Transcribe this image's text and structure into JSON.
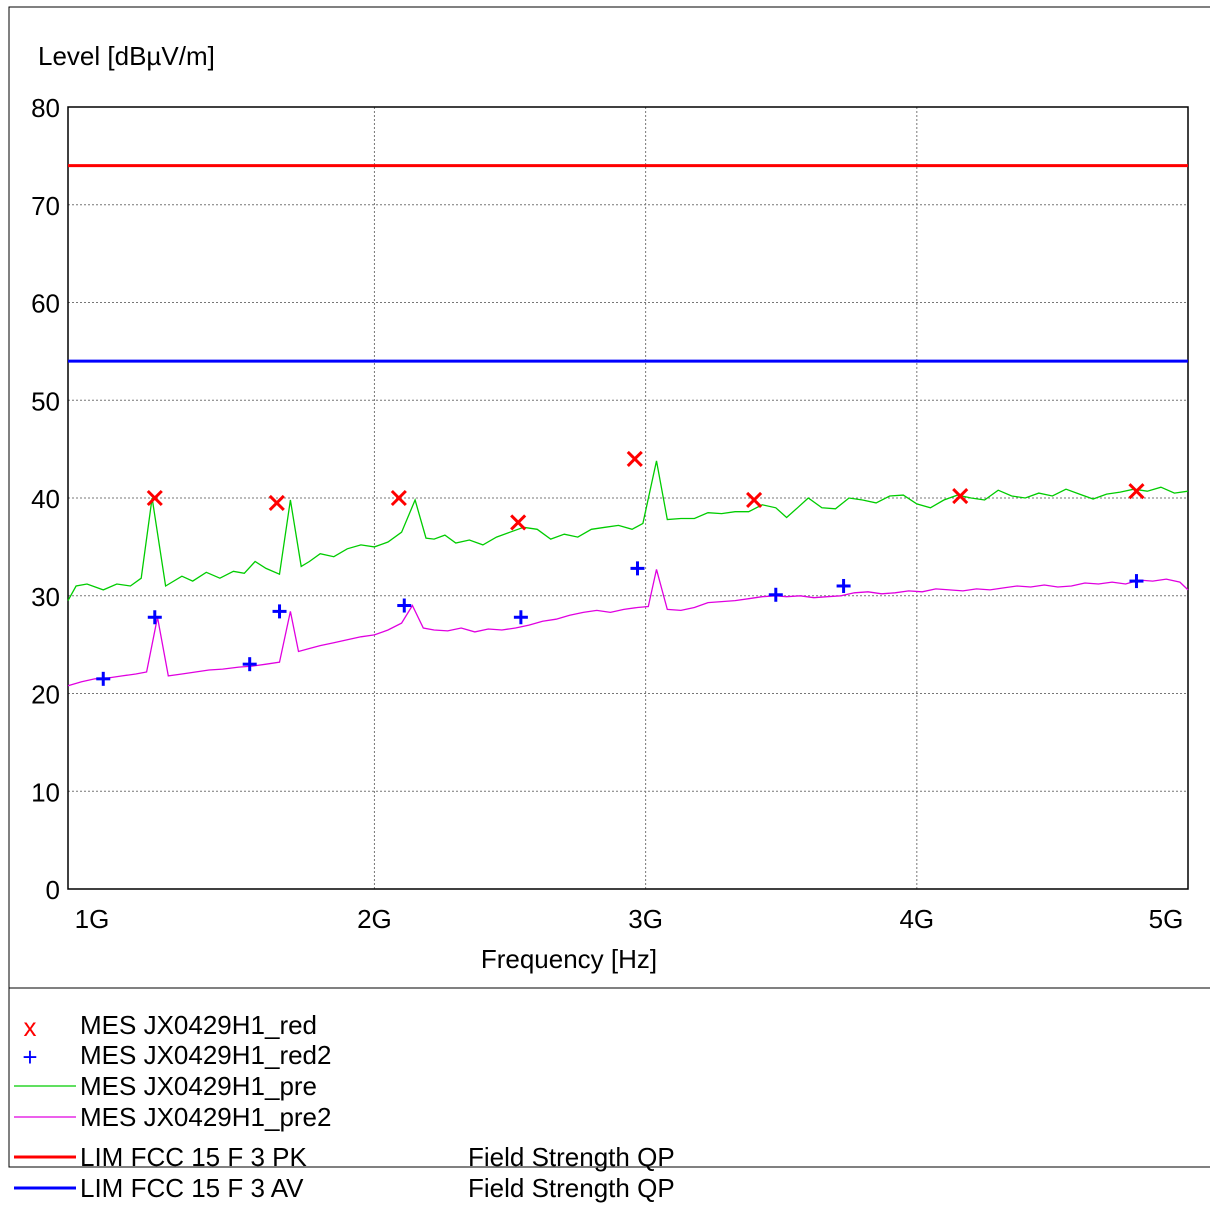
{
  "chart_data": {
    "type": "line",
    "ylabel": "Level [dBµV/m]",
    "xlabel": "Frequency [Hz]",
    "ylim": [
      0,
      80
    ],
    "xlim": [
      1000000000,
      5000000000
    ],
    "yticks": [
      "0",
      "10",
      "20",
      "30",
      "40",
      "50",
      "60",
      "70",
      "80"
    ],
    "xticks": [
      {
        "value": 1000000000,
        "label": "1G"
      },
      {
        "value": 2000000000,
        "label": "2G"
      },
      {
        "value": 3000000000,
        "label": "3G"
      },
      {
        "value": 4000000000,
        "label": "4G"
      },
      {
        "value": 5000000000,
        "label": "5G"
      }
    ],
    "grid": true,
    "legend_placement": "bottom",
    "limits": [
      {
        "name": "LIM  FCC 15 F 3 PK",
        "value": 74,
        "color": "#ff0000",
        "desc": "Field Strength QP"
      },
      {
        "name": "LIM  FCC 15 F 3 AV",
        "value": 54,
        "color": "#0000ff",
        "desc": "Field Strength QP"
      }
    ],
    "series": [
      {
        "name": "MES  JX0429H1_pre",
        "color": "#00cc00",
        "kind": "line",
        "x_ghz": [
          0.87,
          0.9,
          0.94,
          1.0,
          1.05,
          1.1,
          1.14,
          1.18,
          1.23,
          1.29,
          1.33,
          1.38,
          1.43,
          1.48,
          1.52,
          1.56,
          1.6,
          1.65,
          1.69,
          1.73,
          1.76,
          1.8,
          1.85,
          1.9,
          1.95,
          2.0,
          2.05,
          2.1,
          2.15,
          2.19,
          2.22,
          2.26,
          2.3,
          2.35,
          2.4,
          2.45,
          2.5,
          2.55,
          2.6,
          2.65,
          2.7,
          2.75,
          2.8,
          2.85,
          2.9,
          2.95,
          2.99,
          3.04,
          3.08,
          3.13,
          3.18,
          3.23,
          3.28,
          3.33,
          3.38,
          3.43,
          3.48,
          3.52,
          3.56,
          3.6,
          3.65,
          3.7,
          3.75,
          3.8,
          3.85,
          3.9,
          3.95,
          4.0,
          4.05,
          4.1,
          4.15,
          4.2,
          4.25,
          4.3,
          4.35,
          4.4,
          4.45,
          4.5,
          4.55,
          4.6,
          4.65,
          4.7,
          4.75,
          4.8,
          4.85,
          4.9,
          4.95,
          5.0
        ],
        "y": [
          29.5,
          31.0,
          31.2,
          30.6,
          31.2,
          31.0,
          31.8,
          40.0,
          31.0,
          32.0,
          31.5,
          32.4,
          31.8,
          32.5,
          32.3,
          33.5,
          32.8,
          32.2,
          39.8,
          33.0,
          33.5,
          34.3,
          34.0,
          34.8,
          35.2,
          35.0,
          35.5,
          36.5,
          39.8,
          35.9,
          35.8,
          36.2,
          35.4,
          35.7,
          35.2,
          36.0,
          36.5,
          37.0,
          36.8,
          35.8,
          36.3,
          36.0,
          36.8,
          37.0,
          37.2,
          36.8,
          37.4,
          43.8,
          37.8,
          37.9,
          37.9,
          38.5,
          38.4,
          38.6,
          38.6,
          39.3,
          39.0,
          38.0,
          39.0,
          40.0,
          39.0,
          38.9,
          40.0,
          39.8,
          39.5,
          40.2,
          40.3,
          39.4,
          39.0,
          39.8,
          40.3,
          40.0,
          39.8,
          40.8,
          40.2,
          40.0,
          40.5,
          40.2,
          40.9,
          40.4,
          39.9,
          40.4,
          40.6,
          40.9,
          40.7,
          41.1,
          40.5,
          40.7
        ]
      },
      {
        "name": "MES  JX0429H1_pre2",
        "color": "#e000e0",
        "kind": "line",
        "x_ghz": [
          0.87,
          0.92,
          0.97,
          1.02,
          1.07,
          1.12,
          1.16,
          1.2,
          1.24,
          1.29,
          1.34,
          1.39,
          1.44,
          1.5,
          1.55,
          1.6,
          1.65,
          1.69,
          1.72,
          1.76,
          1.8,
          1.85,
          1.9,
          1.95,
          2.0,
          2.05,
          2.1,
          2.14,
          2.18,
          2.22,
          2.27,
          2.32,
          2.37,
          2.42,
          2.47,
          2.52,
          2.57,
          2.62,
          2.67,
          2.72,
          2.77,
          2.82,
          2.87,
          2.92,
          2.97,
          3.01,
          3.04,
          3.08,
          3.13,
          3.18,
          3.23,
          3.28,
          3.33,
          3.38,
          3.43,
          3.48,
          3.52,
          3.57,
          3.62,
          3.67,
          3.72,
          3.77,
          3.82,
          3.87,
          3.92,
          3.97,
          4.02,
          4.07,
          4.12,
          4.17,
          4.22,
          4.27,
          4.32,
          4.37,
          4.42,
          4.47,
          4.52,
          4.57,
          4.62,
          4.67,
          4.72,
          4.77,
          4.82,
          4.87,
          4.92,
          4.97,
          5.0
        ],
        "y": [
          20.8,
          21.2,
          21.5,
          21.6,
          21.8,
          22.0,
          22.2,
          27.8,
          21.8,
          22.0,
          22.2,
          22.4,
          22.5,
          22.7,
          22.8,
          23.0,
          23.2,
          28.4,
          24.3,
          24.6,
          24.9,
          25.2,
          25.5,
          25.8,
          26.0,
          26.5,
          27.2,
          29.0,
          26.7,
          26.5,
          26.4,
          26.7,
          26.3,
          26.6,
          26.5,
          26.7,
          27.0,
          27.4,
          27.6,
          28.0,
          28.3,
          28.5,
          28.3,
          28.6,
          28.8,
          28.9,
          32.7,
          28.6,
          28.5,
          28.8,
          29.3,
          29.4,
          29.5,
          29.7,
          29.9,
          30.0,
          29.9,
          30.0,
          29.8,
          29.9,
          30.0,
          30.3,
          30.4,
          30.2,
          30.3,
          30.5,
          30.4,
          30.7,
          30.6,
          30.5,
          30.7,
          30.6,
          30.8,
          31.0,
          30.9,
          31.1,
          30.9,
          31.0,
          31.3,
          31.2,
          31.4,
          31.2,
          31.6,
          31.5,
          31.7,
          31.4,
          30.6
        ]
      },
      {
        "name": "MES  JX0429H1_red",
        "color": "#ff0000",
        "kind": "marker",
        "marker": "x",
        "x_ghz": [
          1.19,
          1.64,
          2.09,
          2.53,
          2.96,
          3.4,
          4.16,
          4.81
        ],
        "y": [
          40.0,
          39.5,
          40.0,
          37.5,
          44.0,
          39.8,
          40.2,
          40.7
        ]
      },
      {
        "name": "MES  JX0429H1_red2",
        "color": "#0000ff",
        "kind": "marker",
        "marker": "+",
        "x_ghz": [
          1.0,
          1.19,
          1.54,
          1.65,
          2.11,
          2.54,
          2.97,
          3.48,
          3.73,
          4.81
        ],
        "y": [
          21.5,
          27.8,
          23.0,
          28.4,
          29.0,
          27.8,
          32.8,
          30.1,
          31.0,
          31.5
        ]
      }
    ]
  }
}
